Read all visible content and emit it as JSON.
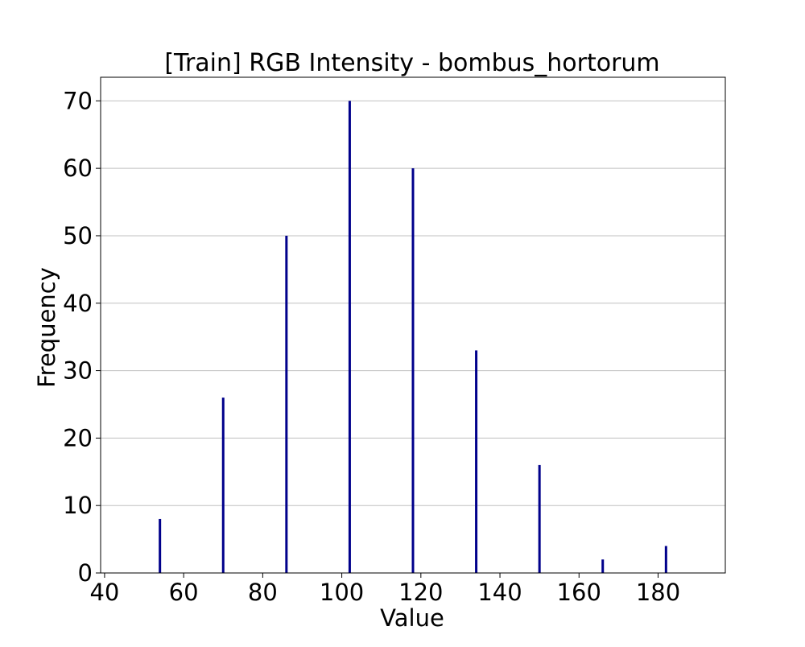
{
  "chart_data": {
    "type": "bar",
    "title": "[Train] RGB Intensity - bombus_hortorum",
    "xlabel": "Value",
    "ylabel": "Frequency",
    "x": [
      54,
      70,
      86,
      102,
      118,
      134,
      150,
      166,
      182
    ],
    "values": [
      8,
      26,
      50,
      70,
      60,
      33,
      16,
      2,
      4
    ],
    "xlim": [
      39,
      197
    ],
    "ylim": [
      0,
      73.5
    ],
    "xticks": [
      40,
      60,
      80,
      100,
      120,
      140,
      160,
      180
    ],
    "yticks": [
      0,
      10,
      20,
      30,
      40,
      50,
      60,
      70
    ],
    "grid": "horizontal",
    "legend": "none",
    "colors": {
      "bar": "#00008b",
      "grid": "#c0c0c0",
      "axes": "#000000",
      "background": "#ffffff"
    }
  }
}
